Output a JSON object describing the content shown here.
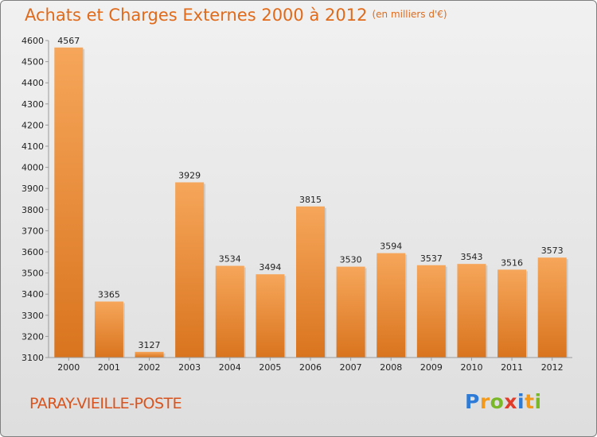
{
  "title": "Achats et Charges Externes 2000 à 2012",
  "subtitle": "(en milliers d'€)",
  "location": "PARAY-VIEILLE-POSTE",
  "logo": {
    "text": "Proxiti",
    "letters": [
      "P",
      "r",
      "o",
      "x",
      "i",
      "t",
      "i"
    ],
    "colors": [
      "#2d7bd6",
      "#f39a1c",
      "#7ab829",
      "#e13b2a",
      "#2d7bd6",
      "#f39a1c",
      "#7ab829"
    ]
  },
  "colors": {
    "title": "#e06a1a",
    "bar_top": "#f6a65a",
    "bar_bottom": "#d9741e",
    "location": "#d9531e"
  },
  "chart_data": {
    "type": "bar",
    "title": "Achats et Charges Externes 2000 à 2012",
    "subtitle": "(en milliers d'€)",
    "categories": [
      "2000",
      "2001",
      "2002",
      "2003",
      "2004",
      "2005",
      "2006",
      "2007",
      "2008",
      "2009",
      "2010",
      "2011",
      "2012"
    ],
    "values": [
      4567,
      3365,
      3127,
      3929,
      3534,
      3494,
      3815,
      3530,
      3594,
      3537,
      3543,
      3516,
      3573
    ],
    "ylim": [
      3100,
      4600
    ],
    "yticks": [
      3100,
      3200,
      3300,
      3400,
      3500,
      3600,
      3700,
      3800,
      3900,
      4000,
      4100,
      4200,
      4300,
      4400,
      4500,
      4600
    ],
    "grid": false,
    "xlabel": "",
    "ylabel": ""
  }
}
